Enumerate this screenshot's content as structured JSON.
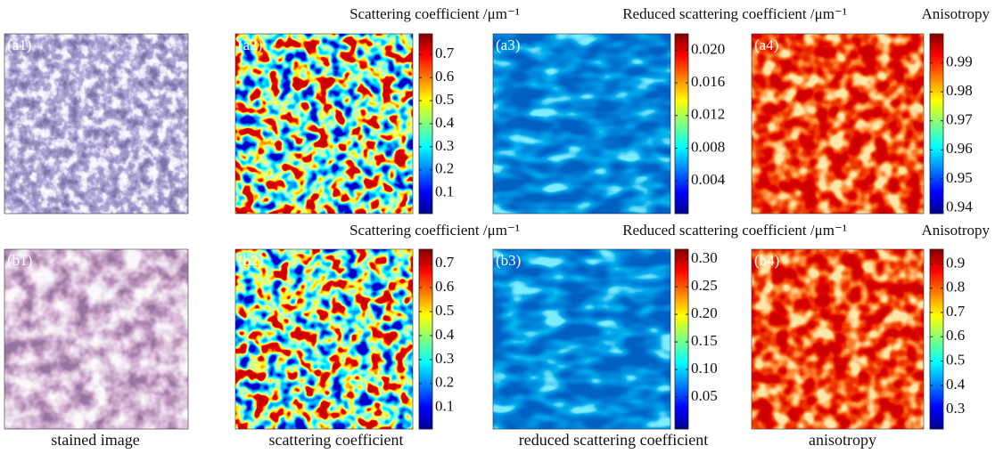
{
  "rows": [
    {
      "panels": [
        {
          "label": "(a1)"
        },
        {
          "label": "(a2)",
          "colorbar": {
            "title": "Scattering coefficient /μm⁻¹",
            "lim": [
              0.01,
              0.79
            ],
            "ticks": [
              0.1,
              0.2,
              0.3,
              0.4,
              0.5,
              0.6,
              0.7
            ]
          }
        },
        {
          "label": "(a3)",
          "colorbar": {
            "title": "Reduced scattering coefficient /μm⁻¹",
            "lim": [
              0,
              0.022
            ],
            "ticks": [
              0.004,
              0.008,
              0.012,
              0.016,
              {
                "value": 0.02,
                "label": "0.020"
              }
            ]
          }
        },
        {
          "label": "(a4)",
          "colorbar": {
            "title": "Anisotropy",
            "lim": [
              0.938,
              1.0
            ],
            "ticks": [
              0.94,
              0.95,
              0.96,
              0.97,
              0.98,
              0.99
            ]
          }
        }
      ]
    },
    {
      "panels": [
        {
          "label": "(b1)"
        },
        {
          "label": "(b2)",
          "colorbar": {
            "title": "Scattering coefficient /μm⁻¹",
            "lim": [
              0.01,
              0.76
            ],
            "ticks": [
              0.1,
              0.2,
              0.3,
              0.4,
              0.5,
              0.6,
              0.7
            ]
          }
        },
        {
          "label": "(b3)",
          "colorbar": {
            "title": "Reduced scattering coefficient /μm⁻¹",
            "lim": [
              -0.008,
              0.318
            ],
            "ticks": [
              0.05,
              {
                "value": 0.1,
                "label": "0.10"
              },
              0.15,
              {
                "value": 0.2,
                "label": "0.20"
              },
              0.25,
              {
                "value": 0.3,
                "label": "0.30"
              }
            ]
          }
        },
        {
          "label": "(b4)",
          "colorbar": {
            "title": "Anisotropy",
            "lim": [
              0.22,
              0.96
            ],
            "ticks": [
              0.3,
              0.4,
              0.5,
              0.6,
              0.7,
              0.8,
              0.9
            ]
          }
        }
      ]
    }
  ],
  "captions": [
    "stained image",
    "scattering coefficient",
    "reduced scattering coefficient",
    "anisotropy"
  ]
}
